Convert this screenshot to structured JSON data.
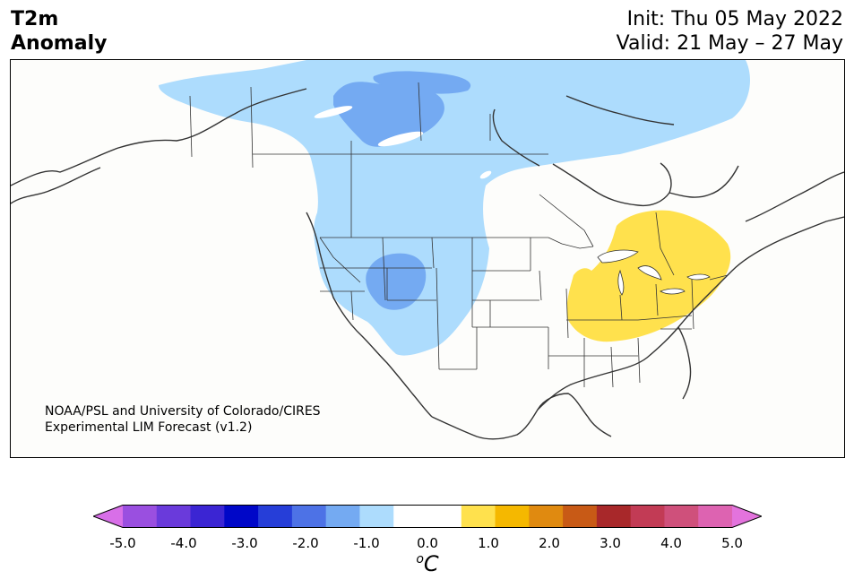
{
  "title": {
    "line1": "T2m",
    "line2": "Anomaly"
  },
  "header": {
    "init": "Init: Thu 05 May 2022",
    "valid": "Valid: 21 May – 27 May"
  },
  "credit": {
    "line1": "NOAA/PSL and University of Colorado/CIRES",
    "line2": "Experimental LIM Forecast (v1.2)"
  },
  "colorbar": {
    "colors": [
      "#d86fe8",
      "#9a4fe0",
      "#6a3adb",
      "#3b25d3",
      "#0007c8",
      "#263ed8",
      "#4d72e6",
      "#74aaf2",
      "#addcfd",
      "#ffffff",
      "#ffffff",
      "#ffe14d",
      "#f5b800",
      "#e08a10",
      "#c85a16",
      "#a8282a",
      "#c23b55",
      "#cf507b",
      "#dd63b1",
      "#e373dd"
    ],
    "tick_labels": [
      "-5.0",
      "-4.0",
      "-3.0",
      "-2.0",
      "-1.0",
      "0.0",
      "1.0",
      "2.0",
      "3.0",
      "4.0",
      "5.0"
    ],
    "units_symbol": "o",
    "units_letter": "C"
  },
  "map_colors": {
    "light_blue": "#addcfd",
    "mid_blue": "#74aaf2",
    "yellow": "#ffe14d",
    "background": "#fdfdfb",
    "lines": "#333333"
  }
}
